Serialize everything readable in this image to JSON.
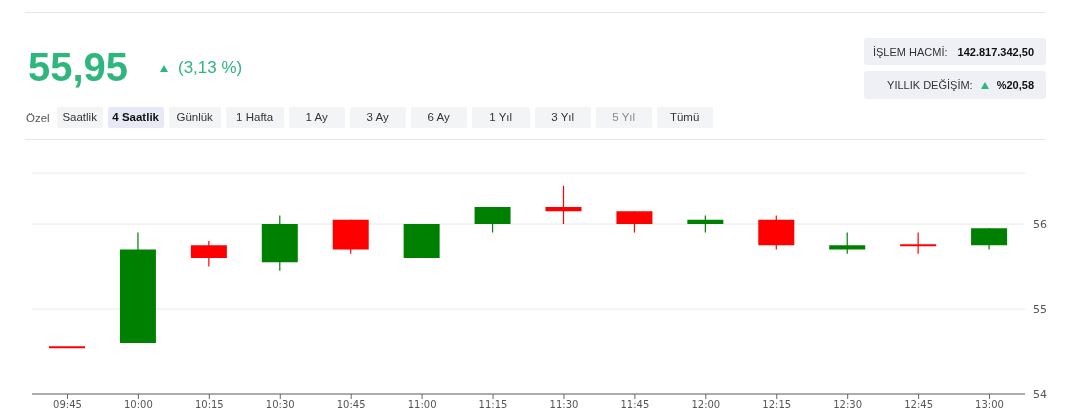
{
  "chart_data": {
    "type": "candlestick",
    "title": "55,95",
    "subtitle": "(3,13 %)",
    "annotations": [
      "İŞLEM HACMİ:",
      "142.817.342,50",
      "YILLIK DEĞİŞİM:",
      "%20,58",
      "Özel",
      "Saatlik",
      "4 Saatlik",
      "Günlük",
      "1 Hafta",
      "1 Ay",
      "3 Ay",
      "6 Ay",
      "1 Yıl",
      "3 Yıl",
      "5 Yıl",
      "Tümü"
    ],
    "categories": [
      "09:45",
      "10:00",
      "10:15",
      "10:30",
      "10:45",
      "11:00",
      "11:15",
      "11:30",
      "11:45",
      "12:00",
      "12:15",
      "12:30",
      "12:45",
      "13:00"
    ],
    "ohlc": [
      [
        54.55,
        54.55,
        54.55,
        54.55
      ],
      [
        54.6,
        55.9,
        54.6,
        55.7
      ],
      [
        55.75,
        55.8,
        55.5,
        55.6
      ],
      [
        55.55,
        56.1,
        55.45,
        56.0
      ],
      [
        56.05,
        56.05,
        55.65,
        55.7
      ],
      [
        55.6,
        56.0,
        55.6,
        56.0
      ],
      [
        56.0,
        56.2,
        55.9,
        56.2
      ],
      [
        56.2,
        56.45,
        56.0,
        56.15
      ],
      [
        56.15,
        56.15,
        55.9,
        56.0
      ],
      [
        56.0,
        56.1,
        55.9,
        56.05
      ],
      [
        56.05,
        56.1,
        55.7,
        55.75
      ],
      [
        55.7,
        55.9,
        55.65,
        55.75
      ],
      [
        55.75,
        55.9,
        55.65,
        55.75
      ],
      [
        55.75,
        55.95,
        55.7,
        55.95
      ]
    ],
    "colors": [
      "#ff0000",
      "#008000",
      "#ff0000",
      "#008000",
      "#ff0000",
      "#008000",
      "#008000",
      "#ff0000",
      "#ff0000",
      "#008000",
      "#ff0000",
      "#008000",
      "#ff0000",
      "#008000"
    ],
    "ylim": [
      54,
      56.6
    ],
    "yticks": [
      54,
      55,
      56
    ],
    "grid": "y"
  }
}
